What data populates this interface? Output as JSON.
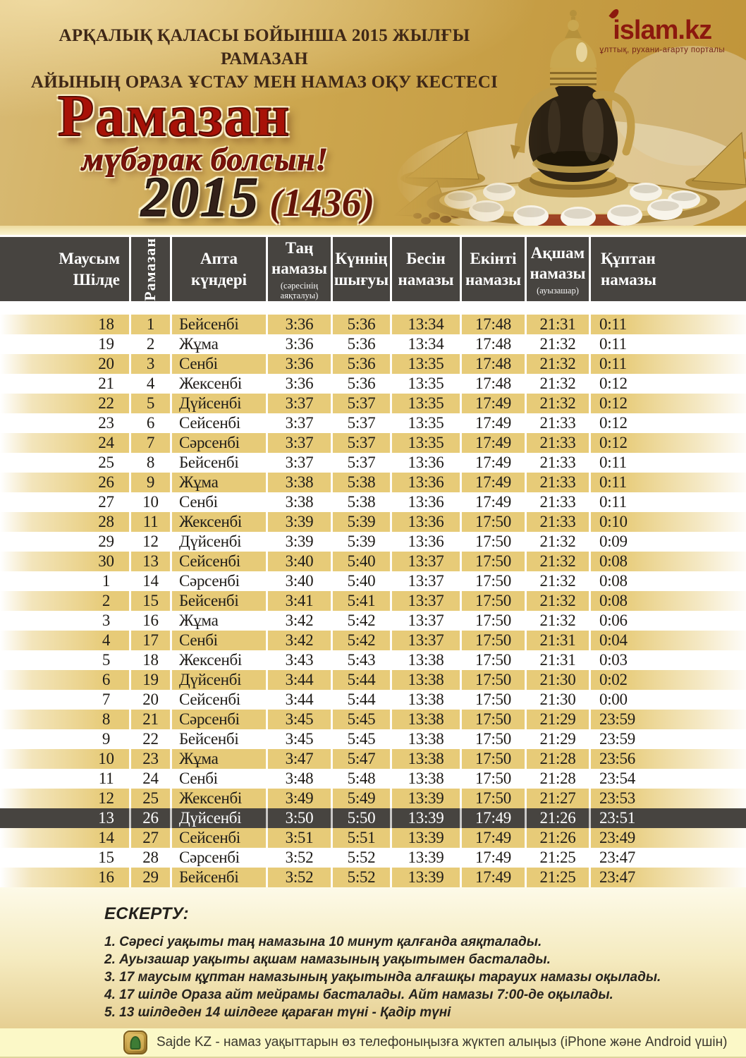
{
  "poster": {
    "heading_line1": "АРҚАЛЫҚ ҚАЛАСЫ БОЙЫНША 2015 ЖЫЛҒЫ РАМАЗАН",
    "heading_line2": "АЙЫНЫҢ ОРАЗА ҰСТАУ МЕН НАМАЗ ОҚУ КЕСТЕСІ",
    "title": "Рамазан",
    "subtitle": "мүбәрак болсын!",
    "year": "2015",
    "hijri_year": "(1436)",
    "logo_text": "islam.kz",
    "logo_tagline": "ұлттық, рухани-ағарту порталы"
  },
  "table": {
    "columns": [
      {
        "key": "june-july",
        "lines": [
          "Маусым",
          "Шілде"
        ]
      },
      {
        "key": "ramadan",
        "lines": [
          "Рамазан"
        ],
        "vertical": true
      },
      {
        "key": "weekday",
        "lines": [
          "Апта",
          "күндері"
        ]
      },
      {
        "key": "fajr",
        "lines": [
          "Таң",
          "намазы"
        ],
        "sub": [
          "(сәресінің",
          "аяқталуы)"
        ]
      },
      {
        "key": "sunrise",
        "lines": [
          "Күннің",
          "шығуы"
        ]
      },
      {
        "key": "dhuhr",
        "lines": [
          "Бесін",
          "намазы"
        ]
      },
      {
        "key": "asr",
        "lines": [
          "Екінті",
          "намазы"
        ]
      },
      {
        "key": "maghrib",
        "lines": [
          "Ақшам",
          "намазы"
        ],
        "sub": [
          "(ауызашар)"
        ]
      },
      {
        "key": "isha",
        "lines": [
          "Құптан",
          "намазы"
        ]
      }
    ],
    "highlighted_ramadan_day": "26",
    "rows": [
      [
        "18",
        "1",
        "Бейсенбі",
        "3:36",
        "5:36",
        "13:34",
        "17:48",
        "21:31",
        "0:11"
      ],
      [
        "19",
        "2",
        "Жұма",
        "3:36",
        "5:36",
        "13:34",
        "17:48",
        "21:32",
        "0:11"
      ],
      [
        "20",
        "3",
        "Сенбі",
        "3:36",
        "5:36",
        "13:35",
        "17:48",
        "21:32",
        "0:11"
      ],
      [
        "21",
        "4",
        "Жексенбі",
        "3:36",
        "5:36",
        "13:35",
        "17:48",
        "21:32",
        "0:12"
      ],
      [
        "22",
        "5",
        "Дүйсенбі",
        "3:37",
        "5:37",
        "13:35",
        "17:49",
        "21:32",
        "0:12"
      ],
      [
        "23",
        "6",
        "Сейсенбі",
        "3:37",
        "5:37",
        "13:35",
        "17:49",
        "21:33",
        "0:12"
      ],
      [
        "24",
        "7",
        "Сәрсенбі",
        "3:37",
        "5:37",
        "13:35",
        "17:49",
        "21:33",
        "0:12"
      ],
      [
        "25",
        "8",
        "Бейсенбі",
        "3:37",
        "5:37",
        "13:36",
        "17:49",
        "21:33",
        "0:11"
      ],
      [
        "26",
        "9",
        "Жұма",
        "3:38",
        "5:38",
        "13:36",
        "17:49",
        "21:33",
        "0:11"
      ],
      [
        "27",
        "10",
        "Сенбі",
        "3:38",
        "5:38",
        "13:36",
        "17:49",
        "21:33",
        "0:11"
      ],
      [
        "28",
        "11",
        "Жексенбі",
        "3:39",
        "5:39",
        "13:36",
        "17:50",
        "21:33",
        "0:10"
      ],
      [
        "29",
        "12",
        "Дүйсенбі",
        "3:39",
        "5:39",
        "13:36",
        "17:50",
        "21:32",
        "0:09"
      ],
      [
        "30",
        "13",
        "Сейсенбі",
        "3:40",
        "5:40",
        "13:37",
        "17:50",
        "21:32",
        "0:08"
      ],
      [
        "1",
        "14",
        "Сәрсенбі",
        "3:40",
        "5:40",
        "13:37",
        "17:50",
        "21:32",
        "0:08"
      ],
      [
        "2",
        "15",
        "Бейсенбі",
        "3:41",
        "5:41",
        "13:37",
        "17:50",
        "21:32",
        "0:08"
      ],
      [
        "3",
        "16",
        "Жұма",
        "3:42",
        "5:42",
        "13:37",
        "17:50",
        "21:32",
        "0:06"
      ],
      [
        "4",
        "17",
        "Сенбі",
        "3:42",
        "5:42",
        "13:37",
        "17:50",
        "21:31",
        "0:04"
      ],
      [
        "5",
        "18",
        "Жексенбі",
        "3:43",
        "5:43",
        "13:38",
        "17:50",
        "21:31",
        "0:03"
      ],
      [
        "6",
        "19",
        "Дүйсенбі",
        "3:44",
        "5:44",
        "13:38",
        "17:50",
        "21:30",
        "0:02"
      ],
      [
        "7",
        "20",
        "Сейсенбі",
        "3:44",
        "5:44",
        "13:38",
        "17:50",
        "21:30",
        "0:00"
      ],
      [
        "8",
        "21",
        "Сәрсенбі",
        "3:45",
        "5:45",
        "13:38",
        "17:50",
        "21:29",
        "23:59"
      ],
      [
        "9",
        "22",
        "Бейсенбі",
        "3:45",
        "5:45",
        "13:38",
        "17:50",
        "21:29",
        "23:59"
      ],
      [
        "10",
        "23",
        "Жұма",
        "3:47",
        "5:47",
        "13:38",
        "17:50",
        "21:28",
        "23:56"
      ],
      [
        "11",
        "24",
        "Сенбі",
        "3:48",
        "5:48",
        "13:38",
        "17:50",
        "21:28",
        "23:54"
      ],
      [
        "12",
        "25",
        "Жексенбі",
        "3:49",
        "5:49",
        "13:39",
        "17:50",
        "21:27",
        "23:53"
      ],
      [
        "13",
        "26",
        "Дүйсенбі",
        "3:50",
        "5:50",
        "13:39",
        "17:49",
        "21:26",
        "23:51"
      ],
      [
        "14",
        "27",
        "Сейсенбі",
        "3:51",
        "5:51",
        "13:39",
        "17:49",
        "21:26",
        "23:49"
      ],
      [
        "15",
        "28",
        "Сәрсенбі",
        "3:52",
        "5:52",
        "13:39",
        "17:49",
        "21:25",
        "23:47"
      ],
      [
        "16",
        "29",
        "Бейсенбі",
        "3:52",
        "5:52",
        "13:39",
        "17:49",
        "21:25",
        "23:47"
      ]
    ]
  },
  "notes": {
    "heading": "ЕСКЕРТУ:",
    "items": [
      "1. Сәресі уақыты таң намазына 10 минут қалғанда аяқталады.",
      "2. Ауызашар уақыты ақшам намазының уақытымен басталады.",
      "3. 17 маусым құптан намазының уақытында алғашқы тарауих намазы оқылады.",
      "4. 17 шілде Ораза айт мейрамы басталады. Айт намазы 7:00-де оқылады.",
      "5. 13 шілдеден 14 шілдеге қараған түні - Қадір түні"
    ]
  },
  "footer": {
    "app_icon": "sajde-app-icon",
    "text": "Sajde KZ - намаз уақыттарын өз телефоныңызға жүктеп алыңыз (iPhone және Android үшін)"
  },
  "colors": {
    "banner_gold": "#cda74f",
    "table_header_bg": "#474440",
    "row_gold": "#e7cb78",
    "highlight_row_bg": "#474440",
    "title_red": "#a81208",
    "subtitle_red": "#7c130b",
    "year_brown": "#33201a",
    "logo_red": "#8c190e",
    "notes_bg_bottom": "#e6cf92",
    "footer_bg": "#fbf8c7"
  }
}
